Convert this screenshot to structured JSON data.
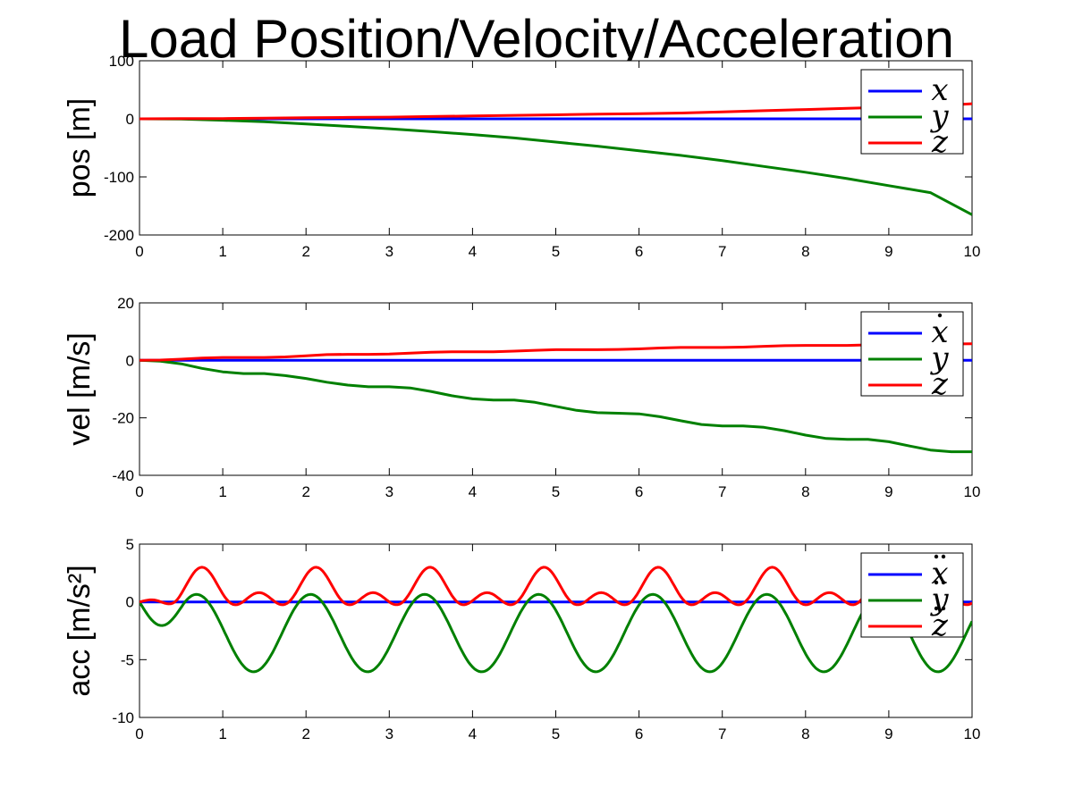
{
  "figure": {
    "title": "Load Position/Velocity/Acceleration",
    "title_color": "#000000",
    "series_colors": {
      "x": "#0000ff",
      "y": "#008000",
      "z": "#ff0000"
    }
  },
  "chart_data": [
    {
      "type": "line",
      "ylabel": "pos [m]",
      "xlim": [
        0,
        10
      ],
      "ylim": [
        -200,
        100
      ],
      "xticks": [
        "0",
        "1",
        "2",
        "3",
        "4",
        "5",
        "6",
        "7",
        "8",
        "9",
        "10"
      ],
      "yticks": [
        "-200",
        "-100",
        "0",
        "100"
      ],
      "grid": false,
      "legend_position": "top-right",
      "legend": [
        "x",
        "y",
        "z"
      ],
      "legend_deriv": [
        0,
        0,
        0
      ],
      "x": [
        0,
        0.5,
        1,
        1.5,
        2,
        2.5,
        3,
        3.5,
        4,
        4.5,
        5,
        5.5,
        6,
        6.5,
        7,
        7.5,
        8,
        8.5,
        9,
        9.5,
        10
      ],
      "series": [
        {
          "key": "x",
          "values": [
            0,
            0,
            0,
            0,
            0,
            0,
            0,
            0,
            0,
            0,
            0,
            0,
            0,
            0,
            0,
            0,
            0,
            0,
            0,
            0,
            0
          ]
        },
        {
          "key": "y",
          "values": [
            0,
            -0.5,
            -2.5,
            -5,
            -9,
            -13,
            -17,
            -22,
            -27,
            -33,
            -40,
            -47,
            -55,
            -63,
            -72,
            -82,
            -92,
            -103,
            -115,
            -127,
            -165
          ]
        },
        {
          "key": "z",
          "values": [
            0,
            0.3,
            0.5,
            1,
            2,
            2.5,
            3,
            4,
            5,
            6,
            7,
            8,
            9,
            10,
            12,
            14,
            16,
            18,
            20,
            22,
            26
          ]
        }
      ]
    },
    {
      "type": "line",
      "ylabel": "vel [m/s]",
      "xlim": [
        0,
        10
      ],
      "ylim": [
        -40,
        20
      ],
      "xticks": [
        "0",
        "1",
        "2",
        "3",
        "4",
        "5",
        "6",
        "7",
        "8",
        "9",
        "10"
      ],
      "yticks": [
        "-40",
        "-20",
        "0",
        "20"
      ],
      "grid": false,
      "legend_position": "top-right",
      "legend": [
        "x",
        "y",
        "z"
      ],
      "legend_deriv": [
        1,
        0,
        0
      ],
      "x": [
        0,
        0.25,
        0.5,
        0.75,
        1,
        1.25,
        1.5,
        1.75,
        2,
        2.25,
        2.5,
        2.75,
        3,
        3.25,
        3.5,
        3.75,
        4,
        4.25,
        4.5,
        4.75,
        5,
        5.25,
        5.5,
        5.75,
        6,
        6.25,
        6.5,
        6.75,
        7,
        7.25,
        7.5,
        7.75,
        8,
        8.25,
        8.5,
        8.75,
        9,
        9.25,
        9.5,
        9.75,
        10
      ],
      "series": [
        {
          "key": "x",
          "values": [
            0,
            0,
            0,
            0,
            0,
            0,
            0,
            0,
            0,
            0,
            0,
            0,
            0,
            0,
            0,
            0,
            0,
            0,
            0,
            0,
            0,
            0,
            0,
            0,
            0,
            0,
            0,
            0,
            0,
            0,
            0,
            0,
            0,
            0,
            0,
            0,
            0,
            0,
            0,
            0,
            0
          ]
        },
        {
          "key": "y",
          "values": [
            0,
            -0.3,
            -1.2,
            -2.8,
            -4,
            -4.6,
            -4.6,
            -5.3,
            -6.3,
            -7.6,
            -8.6,
            -9.2,
            -9.2,
            -9.6,
            -10.8,
            -12.3,
            -13.4,
            -13.8,
            -13.8,
            -14.6,
            -16,
            -17.4,
            -18.2,
            -18.4,
            -18.6,
            -19.6,
            -21,
            -22.3,
            -22.8,
            -22.8,
            -23.3,
            -24.5,
            -26,
            -27.2,
            -27.5,
            -27.5,
            -28.3,
            -29.8,
            -31.2,
            -31.8,
            -31.8
          ]
        },
        {
          "key": "z",
          "values": [
            0,
            0.1,
            0.4,
            0.8,
            1,
            1,
            1,
            1.2,
            1.6,
            2,
            2.1,
            2.1,
            2.2,
            2.5,
            2.8,
            3,
            3,
            3,
            3.2,
            3.5,
            3.7,
            3.7,
            3.7,
            3.8,
            4,
            4.3,
            4.5,
            4.5,
            4.5,
            4.6,
            4.9,
            5.1,
            5.2,
            5.2,
            5.2,
            5.4,
            5.6,
            5.7,
            5.7,
            5.7,
            5.8
          ]
        }
      ]
    },
    {
      "type": "line",
      "ylabel": "acc [m/s²]",
      "xlim": [
        0,
        10
      ],
      "ylim": [
        -10,
        5
      ],
      "xticks": [
        "0",
        "1",
        "2",
        "3",
        "4",
        "5",
        "6",
        "7",
        "8",
        "9",
        "10"
      ],
      "yticks": [
        "-10",
        "-5",
        "0",
        "5"
      ],
      "grid": false,
      "legend_position": "top-right",
      "legend": [
        "x",
        "y",
        "z"
      ],
      "legend_deriv": [
        2,
        2,
        2
      ],
      "period": 1.37,
      "y_mean": -2.7,
      "y_amp": 3.35,
      "z_mean": 1,
      "z_amp": 2.05,
      "series": [
        {
          "key": "x",
          "values": [
            0,
            0
          ]
        },
        {
          "key": "y",
          "values": []
        },
        {
          "key": "z",
          "values": []
        }
      ]
    }
  ]
}
